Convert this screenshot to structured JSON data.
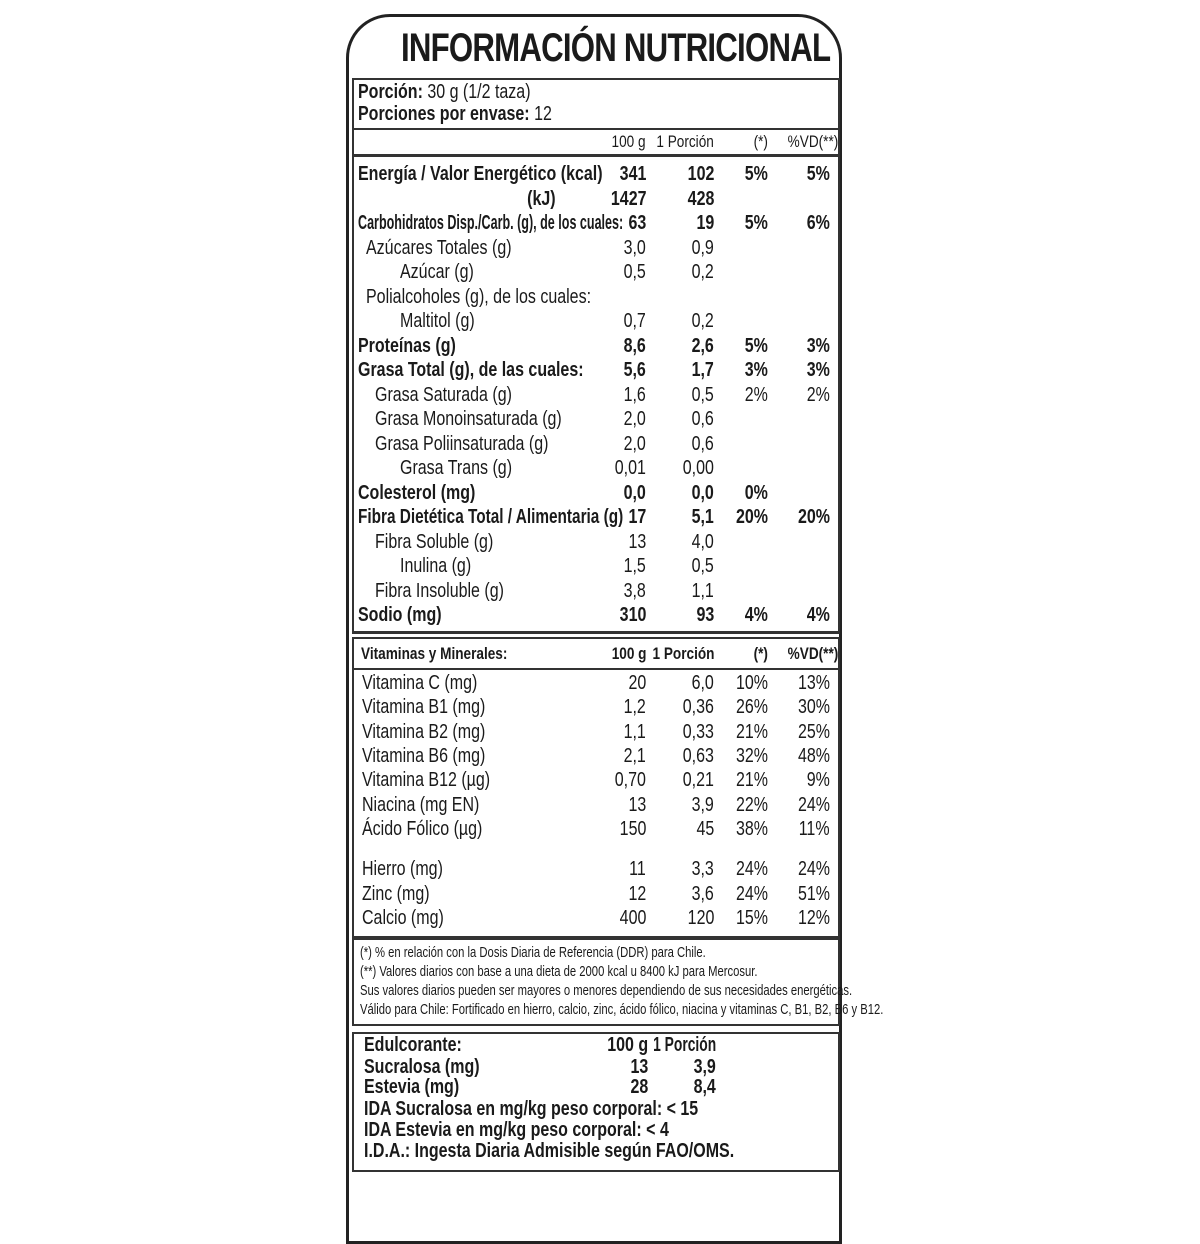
{
  "title": "INFORMACIÓN NUTRICIONAL",
  "serving": {
    "portion_label": "Porción:",
    "portion_value": "30 g (1/2 taza)",
    "per_pack_label": "Porciones por envase:",
    "per_pack_value": "12"
  },
  "header": {
    "c1": "100 g",
    "c2": "1 Porción",
    "c3": "(*)",
    "c4": "%VD(**)"
  },
  "nutrients": [
    {
      "label": "Energía / Valor Energético (kcal)",
      "indent": 0,
      "bold": true,
      "v100": "341",
      "vpor": "102",
      "ddr": "5%",
      "vd": "5%"
    },
    {
      "label": "(kJ)",
      "indent": 3,
      "bold": true,
      "v100": "1427",
      "vpor": "428",
      "ddr": "",
      "vd": ""
    },
    {
      "label": "Carbohidratos Disp./Carb. (g), de los cuales:",
      "indent": 0,
      "bold": true,
      "v100": "63",
      "vpor": "19",
      "ddr": "5%",
      "vd": "6%"
    },
    {
      "label": "Azúcares Totales (g)",
      "indent": 1,
      "bold": false,
      "v100": "3,0",
      "vpor": "0,9",
      "ddr": "",
      "vd": ""
    },
    {
      "label": "Azúcar (g)",
      "indent": 2,
      "bold": false,
      "v100": "0,5",
      "vpor": "0,2",
      "ddr": "",
      "vd": ""
    },
    {
      "label": "Polialcoholes (g), de los cuales:",
      "indent": 1,
      "bold": false,
      "v100": "",
      "vpor": "",
      "ddr": "",
      "vd": ""
    },
    {
      "label": "Maltitol (g)",
      "indent": 2,
      "bold": false,
      "v100": "0,7",
      "vpor": "0,2",
      "ddr": "",
      "vd": ""
    },
    {
      "label": "Proteínas (g)",
      "indent": 0,
      "bold": true,
      "v100": "8,6",
      "vpor": "2,6",
      "ddr": "5%",
      "vd": "3%"
    },
    {
      "label": "Grasa Total (g), de las cuales:",
      "indent": 0,
      "bold": true,
      "v100": "5,6",
      "vpor": "1,7",
      "ddr": "3%",
      "vd": "3%"
    },
    {
      "label": "Grasa Saturada (g)",
      "indent": 1,
      "bold": false,
      "v100": "1,6",
      "vpor": "0,5",
      "ddr": "2%",
      "vd": "2%"
    },
    {
      "label": "Grasa Monoinsaturada (g)",
      "indent": 1,
      "bold": false,
      "v100": "2,0",
      "vpor": "0,6",
      "ddr": "",
      "vd": ""
    },
    {
      "label": "Grasa Poliinsaturada (g)",
      "indent": 1,
      "bold": false,
      "v100": "2,0",
      "vpor": "0,6",
      "ddr": "",
      "vd": ""
    },
    {
      "label": "Grasa Trans (g)",
      "indent": 2,
      "bold": false,
      "v100": "0,01",
      "vpor": "0,00",
      "ddr": "",
      "vd": ""
    },
    {
      "label": "Colesterol (mg)",
      "indent": 0,
      "bold": true,
      "v100": "0,0",
      "vpor": "0,0",
      "ddr": "0%",
      "vd": ""
    },
    {
      "label": "Fibra Dietética Total / Alimentaria (g)",
      "indent": 0,
      "bold": true,
      "v100": "17",
      "vpor": "5,1",
      "ddr": "20%",
      "vd": "20%"
    },
    {
      "label": "Fibra Soluble (g)",
      "indent": 1,
      "bold": false,
      "v100": "13",
      "vpor": "4,0",
      "ddr": "",
      "vd": ""
    },
    {
      "label": "Inulina (g)",
      "indent": 2,
      "bold": false,
      "v100": "1,5",
      "vpor": "0,5",
      "ddr": "",
      "vd": ""
    },
    {
      "label": "Fibra Insoluble (g)",
      "indent": 1,
      "bold": false,
      "v100": "3,8",
      "vpor": "1,1",
      "ddr": "",
      "vd": ""
    },
    {
      "label": "Sodio (mg)",
      "indent": 0,
      "bold": true,
      "v100": "310",
      "vpor": "93",
      "ddr": "4%",
      "vd": "4%"
    }
  ],
  "vitamins_header": {
    "label": "Vitaminas y Minerales:",
    "c1": "100 g",
    "c2": "1 Porción",
    "c3": "(*)",
    "c4": "%VD(**)"
  },
  "vitamins": [
    {
      "label": "Vitamina C (mg)",
      "v100": "20",
      "vpor": "6,0",
      "ddr": "10%",
      "vd": "13%"
    },
    {
      "label": "Vitamina B1 (mg)",
      "v100": "1,2",
      "vpor": "0,36",
      "ddr": "26%",
      "vd": "30%"
    },
    {
      "label": "Vitamina B2 (mg)",
      "v100": "1,1",
      "vpor": "0,33",
      "ddr": "21%",
      "vd": "25%"
    },
    {
      "label": "Vitamina B6 (mg)",
      "v100": "2,1",
      "vpor": "0,63",
      "ddr": "32%",
      "vd": "48%"
    },
    {
      "label": "Vitamina B12 (µg)",
      "v100": "0,70",
      "vpor": "0,21",
      "ddr": "21%",
      "vd": "9%"
    },
    {
      "label": "Niacina (mg EN)",
      "v100": "13",
      "vpor": "3,9",
      "ddr": "22%",
      "vd": "24%"
    },
    {
      "label": "Ácido Fólico (µg)",
      "v100": "150",
      "vpor": "45",
      "ddr": "38%",
      "vd": "11%"
    },
    {
      "label": "Hierro (mg)",
      "v100": "11",
      "vpor": "3,3",
      "ddr": "24%",
      "vd": "24%"
    },
    {
      "label": "Zinc (mg)",
      "v100": "12",
      "vpor": "3,6",
      "ddr": "24%",
      "vd": "51%"
    },
    {
      "label": "Calcio (mg)",
      "v100": "400",
      "vpor": "120",
      "ddr": "15%",
      "vd": "12%"
    }
  ],
  "footnotes": [
    "(*) % en relación con la Dosis Diaria de Referencia (DDR) para Chile.",
    "(**) Valores diarios con base a una dieta de 2000 kcal u 8400 kJ para Mercosur.",
    "Sus valores diarios pueden ser mayores o menores dependiendo de sus necesidades energéticas.",
    "Válido para Chile: Fortificado en hierro, calcio, zinc, ácido fólico, niacina y vitaminas C, B1, B2, B6 y B12."
  ],
  "sweetener": {
    "header": {
      "label": "Edulcorante:",
      "c1": "100 g",
      "c2": "1 Porción"
    },
    "rows": [
      {
        "label": "Sucralosa (mg)",
        "v100": "13",
        "vpor": "3,9"
      },
      {
        "label": "Estevia (mg)",
        "v100": "28",
        "vpor": "8,4"
      }
    ],
    "notes": [
      "IDA Sucralosa en mg/kg peso corporal: < 15",
      "IDA Estevia en mg/kg peso corporal: < 4",
      "I.D.A.: Ingesta Diaria Admisible según FAO/OMS."
    ]
  }
}
